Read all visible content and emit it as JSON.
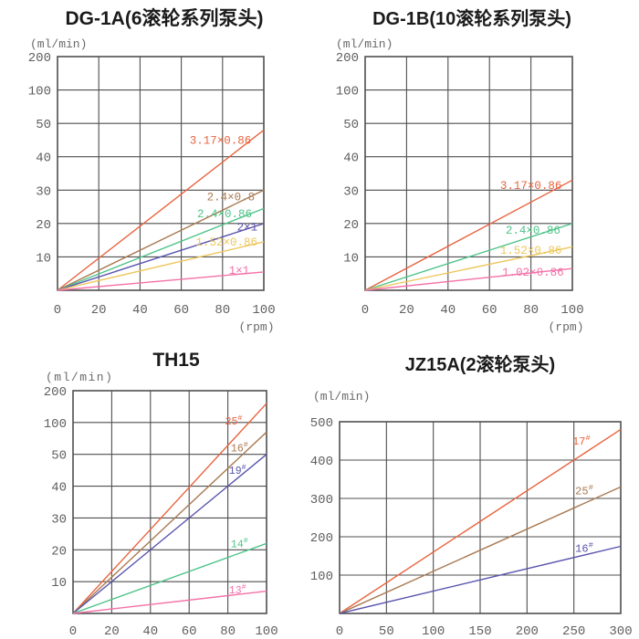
{
  "figure": {
    "background": "#ffffff"
  },
  "colors": {
    "grid": "#4f4f4f",
    "tick_text": "#5f5f5f",
    "title_text": "#1b1b1b"
  },
  "chart_data": [
    {
      "type": "line",
      "title": "DG-1A(6滚轮系列泵头)",
      "y_unit": "(ml/min)",
      "x_unit": "(rpm)",
      "y_ticks": [
        200,
        100,
        50,
        40,
        30,
        20,
        10
      ],
      "x_ticks": [
        0,
        20,
        40,
        60,
        80,
        100
      ],
      "x_max": 100,
      "series": [
        {
          "label": "3.17×0.86",
          "color": "#e8643f",
          "end": 48,
          "label_at": [
            79,
            45
          ]
        },
        {
          "label": "2.4×0.8",
          "color": "#a97a52",
          "end": 30,
          "label_at": [
            84,
            28
          ]
        },
        {
          "label": "2.4×0.86",
          "color": "#4ec489",
          "end": 24.5,
          "label_at": [
            81,
            23
          ]
        },
        {
          "label": "2×1",
          "color": "#5954ad",
          "end": 20,
          "label_at": [
            92,
            19
          ]
        },
        {
          "label": "1.52×0.86",
          "color": "#edc75c",
          "end": 14.5,
          "label_at": [
            82,
            14.5
          ]
        },
        {
          "label": "1×1",
          "color": "#f470a8",
          "end": 5.5,
          "label_at": [
            88,
            6
          ]
        }
      ]
    },
    {
      "type": "line",
      "title": "DG-1B(10滚轮系列泵头)",
      "y_unit": "(ml/min)",
      "x_unit": "(rpm)",
      "y_ticks": [
        200,
        100,
        50,
        40,
        30,
        20,
        10
      ],
      "x_ticks": [
        0,
        20,
        40,
        60,
        80,
        100
      ],
      "x_max": 100,
      "series": [
        {
          "label": "3.17×0.86",
          "color": "#e8643f",
          "end": 33,
          "label_at": [
            80,
            31.5
          ]
        },
        {
          "label": "2.4×0.86",
          "color": "#4ec489",
          "end": 20,
          "label_at": [
            81,
            18
          ]
        },
        {
          "label": "1.52×0.86",
          "color": "#edc75c",
          "end": 13,
          "label_at": [
            80,
            12
          ]
        },
        {
          "label": "1.02×0.86",
          "color": "#f470a8",
          "end": 6.5,
          "label_at": [
            81,
            5.5
          ]
        }
      ]
    },
    {
      "type": "line",
      "title": "TH15",
      "y_unit": "(ml/min)",
      "x_unit": null,
      "y_ticks": [
        200,
        100,
        50,
        40,
        30,
        20,
        10
      ],
      "x_ticks": [
        0,
        20,
        40,
        60,
        80,
        100
      ],
      "x_max": 100,
      "series": [
        {
          "label": "25#",
          "color": "#e8643f",
          "end": 160,
          "label_at": [
            83,
            105
          ]
        },
        {
          "label": "16#",
          "color": "#a97a52",
          "end": 85,
          "label_at": [
            86,
            60
          ]
        },
        {
          "label": "19#",
          "color": "#5954ad",
          "end": 50,
          "label_at": [
            85,
            45
          ]
        },
        {
          "label": "14#",
          "color": "#4ec489",
          "end": 22,
          "label_at": [
            86,
            22
          ]
        },
        {
          "label": "13#",
          "color": "#f470a8",
          "end": 7,
          "label_at": [
            85,
            7.5
          ]
        }
      ]
    },
    {
      "type": "line",
      "title": "JZ15A(2滚轮泵头)",
      "y_unit": "(ml/min)",
      "x_unit": null,
      "y_ticks": [
        500,
        400,
        300,
        200,
        100
      ],
      "x_ticks": [
        0,
        50,
        100,
        150,
        200,
        250,
        300
      ],
      "x_max": 300,
      "series": [
        {
          "label": "17#",
          "color": "#e8643f",
          "end": 480,
          "label_at": [
            258,
            450
          ]
        },
        {
          "label": "25#",
          "color": "#a97a52",
          "end": 330,
          "label_at": [
            261,
            320
          ]
        },
        {
          "label": "16#",
          "color": "#5954ad",
          "end": 175,
          "label_at": [
            261,
            170
          ]
        }
      ]
    }
  ]
}
